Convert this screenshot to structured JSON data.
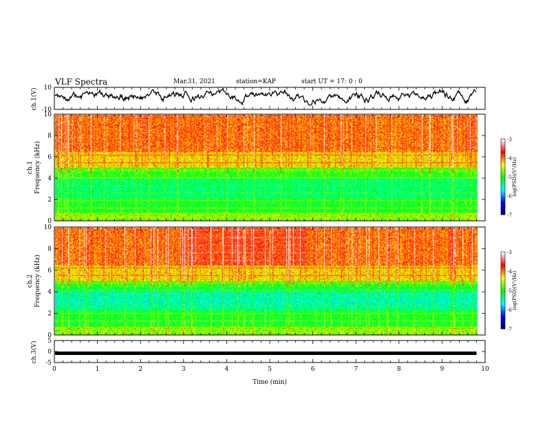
{
  "header": {
    "title": "VLF Spectra",
    "date": "Mar.31, 2021",
    "station": "station=KAP",
    "start": "start UT =  17: 0  : 0"
  },
  "colors": {
    "axis": "#000000",
    "colormap": [
      "#000080",
      "#0000ff",
      "#00ffff",
      "#00ff00",
      "#ffff00",
      "#ff0000",
      "#ffffff"
    ]
  },
  "chart_data": [
    {
      "type": "line",
      "panel": "waveform-ch1",
      "ylabel": "ch.1(V)",
      "xlim": [
        0,
        10
      ],
      "ylim": [
        -10,
        10
      ],
      "yticks": [
        "10",
        "-10"
      ],
      "x_data_end": 9.8,
      "series": [
        {
          "values_description_free": true
        }
      ]
    },
    {
      "type": "heatmap",
      "panel": "spectrogram-ch1",
      "ylabel_line1": "ch.1",
      "ylabel_line2": "Frequency (kHz)",
      "xlim": [
        0,
        10
      ],
      "ylim": [
        0,
        10
      ],
      "yticks": [
        "0",
        "2",
        "4",
        "6",
        "8",
        "10"
      ],
      "colorbar": {
        "label": "log(PSD)(V²/Hz)",
        "range": [
          -7,
          -3
        ],
        "ticks": [
          "-3",
          "-4",
          "-5",
          "-6",
          "-7"
        ]
      }
    },
    {
      "type": "heatmap",
      "panel": "spectrogram-ch2",
      "ylabel_line1": "ch.2",
      "ylabel_line2": "Frequency (kHz)",
      "xlim": [
        0,
        10
      ],
      "ylim": [
        0,
        10
      ],
      "yticks": [
        "0",
        "2",
        "4",
        "6",
        "8",
        "10"
      ],
      "colorbar": {
        "label": "log(PSD)(V²/Hz)",
        "range": [
          -7,
          -3
        ],
        "ticks": [
          "-3",
          "-4",
          "-5",
          "-6",
          "-7"
        ]
      }
    },
    {
      "type": "line",
      "panel": "waveform-ch3",
      "ylabel": "ch.3(V)",
      "xlim": [
        0,
        10
      ],
      "ylim": [
        -5,
        5
      ],
      "yticks": [
        "5",
        "0",
        "-5"
      ],
      "level": -0.8,
      "x_data_end": 9.8
    }
  ],
  "xaxis": {
    "label": "Time (min)",
    "ticks": [
      "0",
      "1",
      "2",
      "3",
      "4",
      "5",
      "6",
      "7",
      "8",
      "9",
      "10"
    ]
  }
}
